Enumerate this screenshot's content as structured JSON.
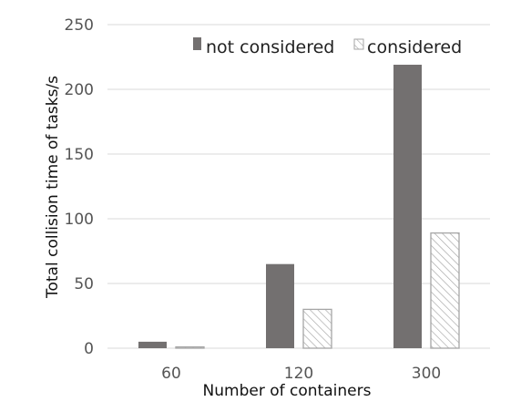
{
  "chart_data": {
    "type": "bar",
    "title": "",
    "xlabel": "Number of containers",
    "ylabel": "Total collision time of tasks/s",
    "categories": [
      "60",
      "120",
      "300"
    ],
    "series": [
      {
        "name": "not considered",
        "values": [
          5,
          65,
          219
        ],
        "color": "#737070",
        "fill": "solid"
      },
      {
        "name": "considered",
        "values": [
          1,
          30,
          89
        ],
        "color": "#a6a6a6",
        "fill": "hatched"
      }
    ],
    "ylim": [
      0,
      250
    ],
    "yticks": [
      0,
      50,
      100,
      150,
      200,
      250
    ],
    "grid": true,
    "legend_position": "top-right"
  }
}
